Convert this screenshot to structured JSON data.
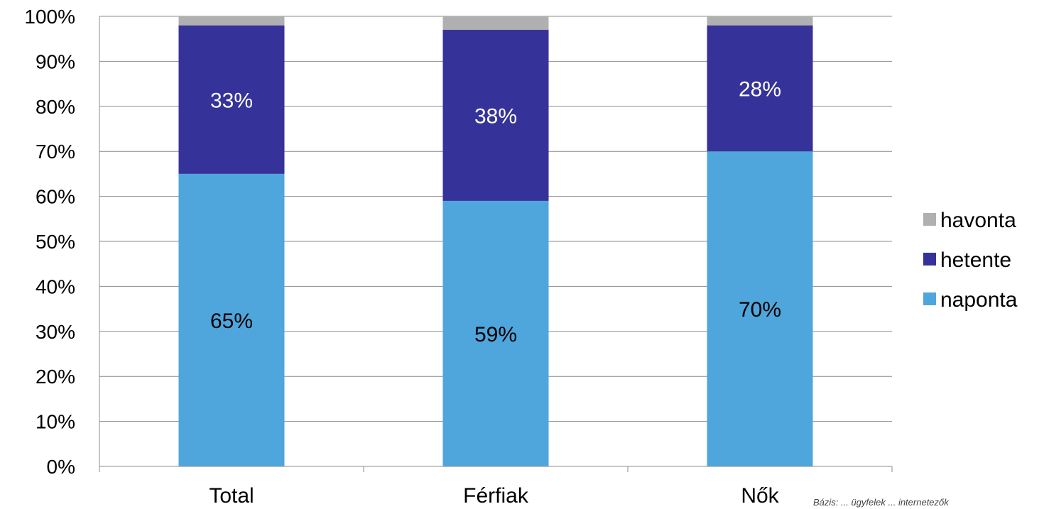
{
  "chart_data": {
    "type": "bar",
    "stacked": true,
    "categories": [
      "Total",
      "Férfiak",
      "Nők"
    ],
    "series": [
      {
        "name": "naponta",
        "values": [
          65,
          59,
          70
        ],
        "color": "#4fa6dc",
        "labels": [
          "65%",
          "59%",
          "70%"
        ]
      },
      {
        "name": "hetente",
        "values": [
          33,
          38,
          28
        ],
        "color": "#353399",
        "labels": [
          "33%",
          "38%",
          "28%"
        ]
      },
      {
        "name": "havonta",
        "values": [
          2,
          3,
          2
        ],
        "color": "#b0b0b0",
        "labels": [
          "",
          "",
          ""
        ]
      }
    ],
    "yticks": [
      "0%",
      "10%",
      "20%",
      "30%",
      "40%",
      "50%",
      "60%",
      "70%",
      "80%",
      "90%",
      "100%"
    ],
    "ylim": [
      0,
      100
    ],
    "grid": true,
    "legend_position": "right",
    "legend_order": [
      "havonta",
      "hetente",
      "naponta"
    ],
    "footnote": "Bázis: ... ügyfelek ... internetezők"
  }
}
